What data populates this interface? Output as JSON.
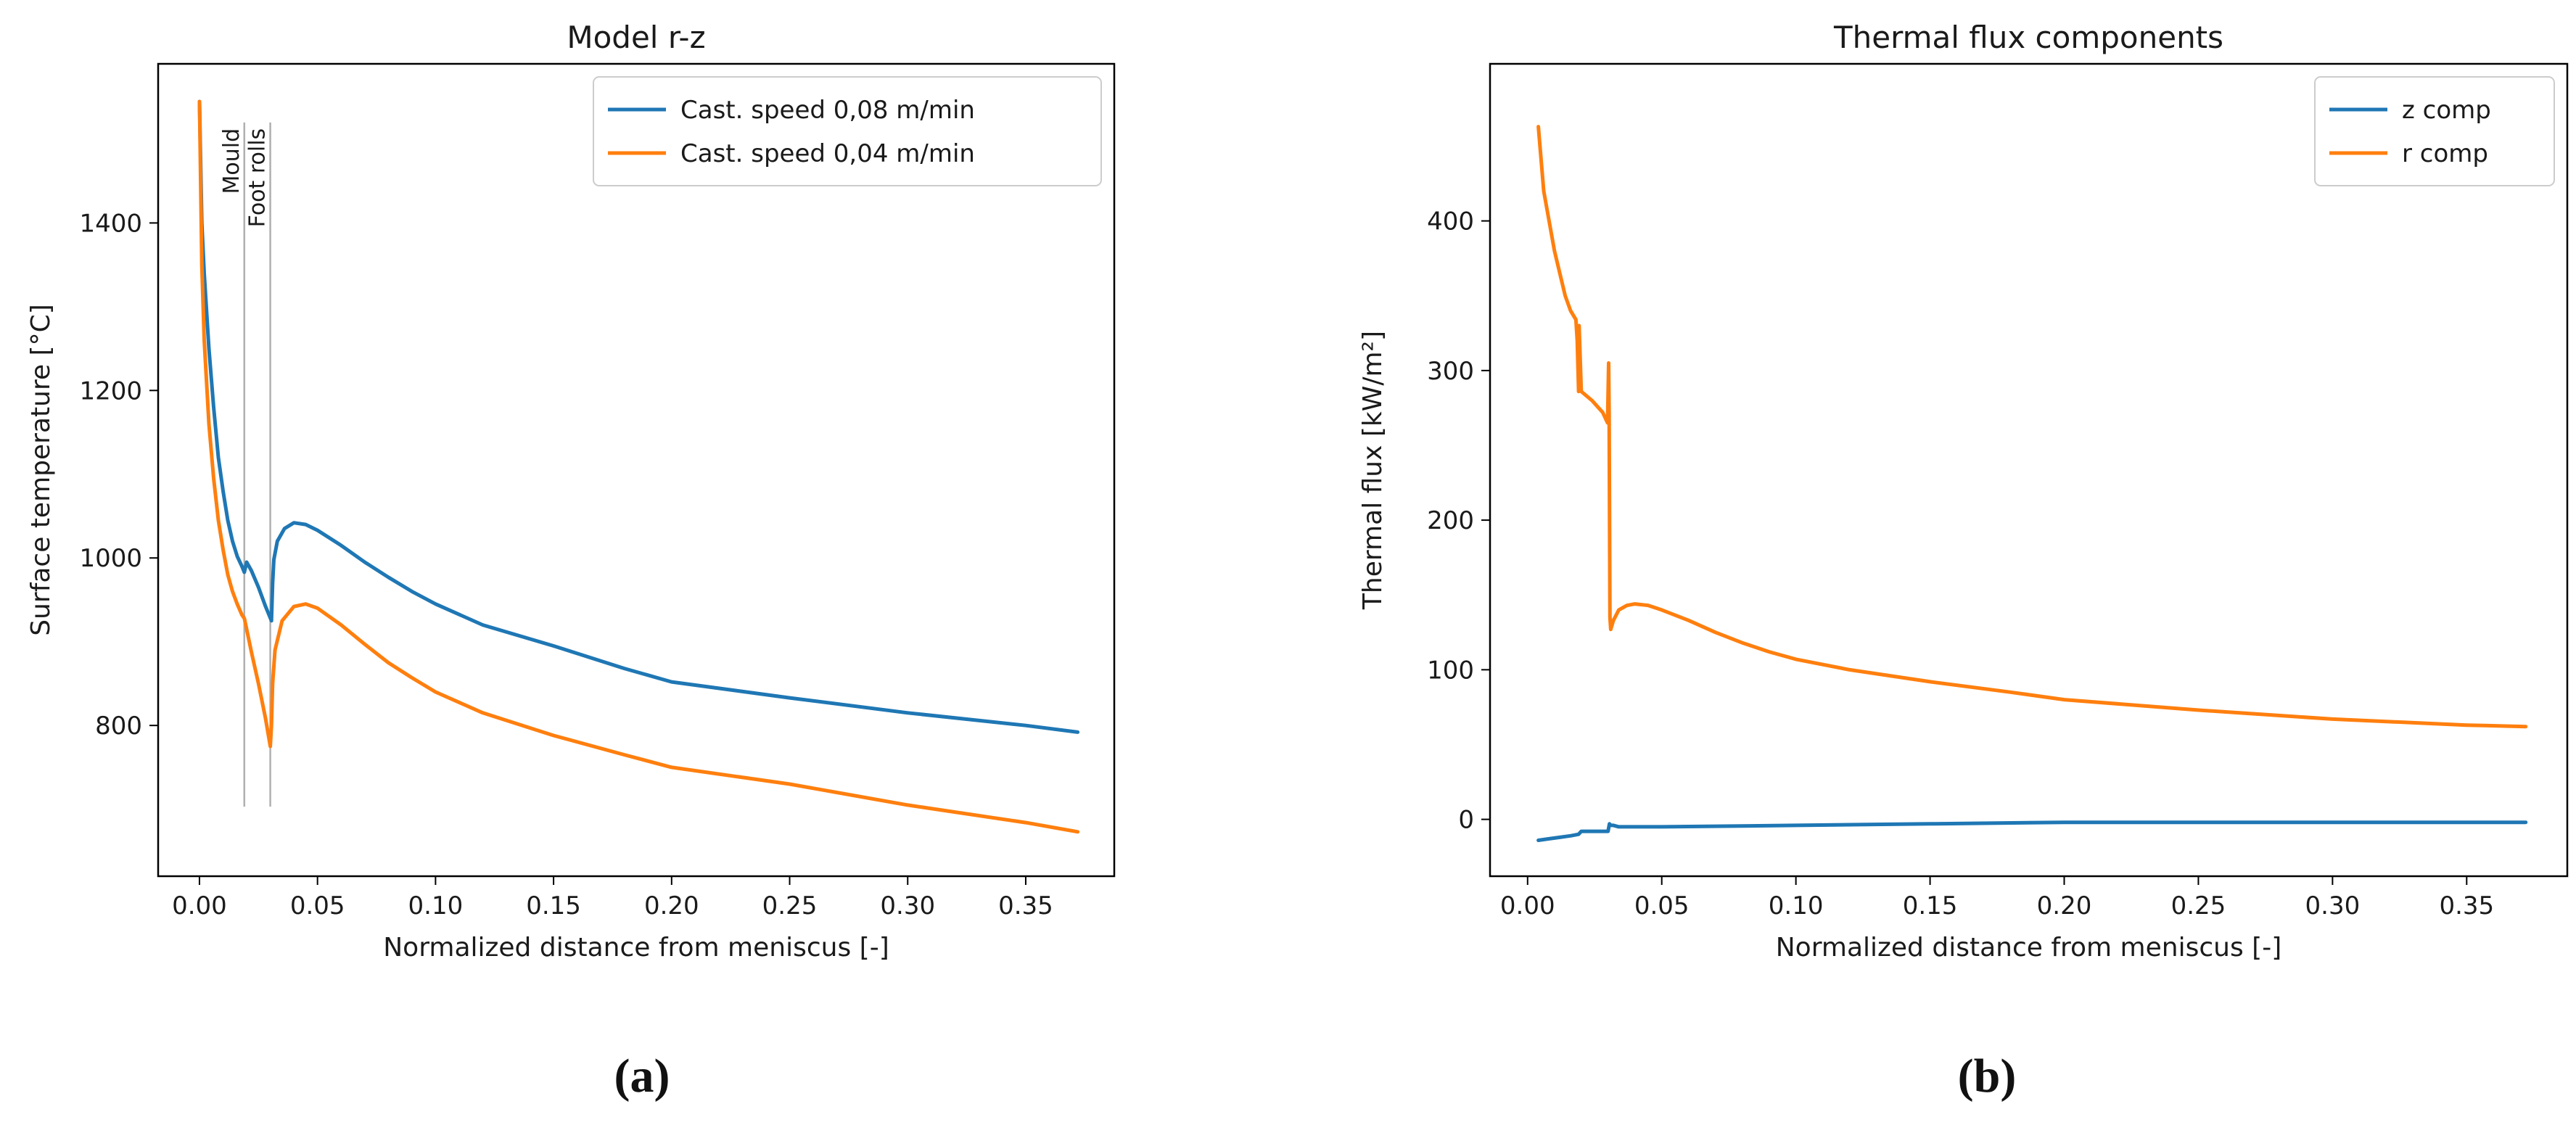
{
  "chart_data": [
    {
      "type": "line",
      "title": "Model r-z",
      "xlabel": "Normalized distance from meniscus [-]",
      "ylabel": "Surface temperature [°C]",
      "xlim": [
        -0.0175,
        0.3875
      ],
      "ylim": [
        620,
        1590
      ],
      "xticks": [
        0.0,
        0.05,
        0.1,
        0.15,
        0.2,
        0.25,
        0.3,
        0.35
      ],
      "xtick_labels": [
        "0.00",
        "0.05",
        "0.10",
        "0.15",
        "0.20",
        "0.25",
        "0.30",
        "0.35"
      ],
      "yticks": [
        800,
        1000,
        1200,
        1400
      ],
      "ytick_labels": [
        "800",
        "1000",
        "1200",
        "1400"
      ],
      "grid": false,
      "legend_position": "top-right",
      "vlines": [
        {
          "x": 0.019,
          "label": "Mould",
          "ymin": 703,
          "ymax": 1520
        },
        {
          "x": 0.03,
          "label": "Foot rolls",
          "ymin": 703,
          "ymax": 1520
        }
      ],
      "series": [
        {
          "name": "Cast. speed 0,08 m/min",
          "color": "#1f77b4",
          "x": [
            0.0,
            0.001,
            0.002,
            0.004,
            0.006,
            0.008,
            0.01,
            0.012,
            0.014,
            0.016,
            0.018,
            0.019,
            0.02,
            0.022,
            0.025,
            0.028,
            0.0305,
            0.031,
            0.0315,
            0.033,
            0.036,
            0.04,
            0.045,
            0.05,
            0.06,
            0.07,
            0.08,
            0.09,
            0.1,
            0.12,
            0.15,
            0.18,
            0.2,
            0.25,
            0.3,
            0.35,
            0.372
          ],
          "y": [
            1545,
            1400,
            1340,
            1250,
            1180,
            1120,
            1080,
            1045,
            1020,
            1002,
            990,
            983,
            995,
            985,
            965,
            942,
            925,
            970,
            998,
            1020,
            1035,
            1042,
            1040,
            1033,
            1015,
            995,
            977,
            960,
            945,
            920,
            895,
            868,
            852,
            833,
            815,
            800,
            792
          ]
        },
        {
          "name": "Cast. speed 0,04 m/min",
          "color": "#ff7f0e",
          "x": [
            0.0,
            0.001,
            0.002,
            0.004,
            0.006,
            0.008,
            0.01,
            0.012,
            0.014,
            0.016,
            0.018,
            0.019,
            0.02,
            0.022,
            0.025,
            0.028,
            0.03,
            0.0305,
            0.031,
            0.032,
            0.035,
            0.04,
            0.045,
            0.05,
            0.06,
            0.07,
            0.08,
            0.09,
            0.1,
            0.12,
            0.15,
            0.18,
            0.2,
            0.25,
            0.3,
            0.35,
            0.372
          ],
          "y": [
            1545,
            1350,
            1260,
            1160,
            1095,
            1045,
            1010,
            980,
            960,
            945,
            932,
            928,
            915,
            888,
            850,
            808,
            775,
            800,
            850,
            890,
            925,
            942,
            945,
            940,
            920,
            897,
            875,
            857,
            840,
            815,
            788,
            765,
            750,
            730,
            705,
            684,
            673
          ]
        }
      ]
    },
    {
      "type": "line",
      "title": "Thermal flux components",
      "xlabel": "Normalized distance from meniscus [-]",
      "ylabel": "Thermal flux [kW/m²]",
      "xlim": [
        -0.014,
        0.3875
      ],
      "ylim": [
        -38,
        505
      ],
      "xticks": [
        0.0,
        0.05,
        0.1,
        0.15,
        0.2,
        0.25,
        0.3,
        0.35
      ],
      "xtick_labels": [
        "0.00",
        "0.05",
        "0.10",
        "0.15",
        "0.20",
        "0.25",
        "0.30",
        "0.35"
      ],
      "yticks": [
        0,
        100,
        200,
        300,
        400
      ],
      "ytick_labels": [
        "0",
        "100",
        "200",
        "300",
        "400"
      ],
      "grid": false,
      "legend_position": "top-right",
      "series": [
        {
          "name": "z comp",
          "color": "#1f77b4",
          "x": [
            0.004,
            0.008,
            0.012,
            0.016,
            0.019,
            0.02,
            0.024,
            0.028,
            0.03,
            0.0305,
            0.031,
            0.032,
            0.034,
            0.04,
            0.05,
            0.1,
            0.15,
            0.2,
            0.25,
            0.3,
            0.35,
            0.372
          ],
          "y": [
            -14,
            -13,
            -12,
            -11,
            -10,
            -8,
            -8,
            -8,
            -8,
            -3,
            -4,
            -4,
            -5,
            -5,
            -5,
            -4,
            -3,
            -2,
            -2,
            -2,
            -2,
            -2
          ]
        },
        {
          "name": "r comp",
          "color": "#ff7f0e",
          "x": [
            0.004,
            0.006,
            0.008,
            0.01,
            0.012,
            0.014,
            0.016,
            0.018,
            0.0185,
            0.019,
            0.0192,
            0.02,
            0.024,
            0.028,
            0.0298,
            0.0302,
            0.0304,
            0.0307,
            0.031,
            0.032,
            0.034,
            0.037,
            0.04,
            0.045,
            0.05,
            0.06,
            0.07,
            0.08,
            0.09,
            0.1,
            0.12,
            0.15,
            0.18,
            0.2,
            0.25,
            0.3,
            0.35,
            0.372
          ],
          "y": [
            463,
            420,
            400,
            380,
            365,
            350,
            340,
            334,
            320,
            286,
            330,
            286,
            280,
            272,
            265,
            305,
            270,
            135,
            127,
            133,
            140,
            143,
            144,
            143,
            140,
            133,
            125,
            118,
            112,
            107,
            100,
            92,
            85,
            80,
            73,
            67,
            63,
            62
          ]
        }
      ]
    }
  ],
  "captions": {
    "left": "(a)",
    "right": "(b)"
  }
}
